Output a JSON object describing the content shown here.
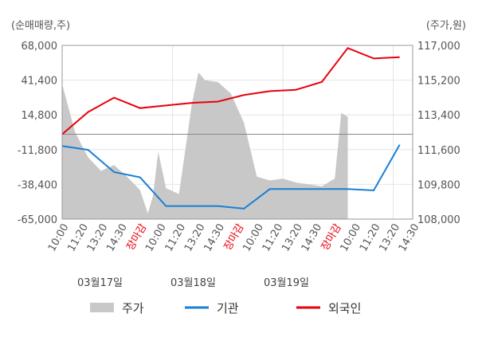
{
  "chart_data": {
    "type": "line",
    "left_unit": "(순매매량,주)",
    "right_unit": "(주가,원)",
    "left_ticks": [
      "68,000",
      "41,400",
      "14,800",
      "-11,800",
      "-38,400",
      "-65,000"
    ],
    "left_range": [
      -65000,
      68000
    ],
    "right_ticks": [
      "117,000",
      "115,200",
      "113,400",
      "111,600",
      "109,800",
      "108,000"
    ],
    "right_range": [
      108000,
      117000
    ],
    "x_labels": [
      "10:00",
      "11:20",
      "13:20",
      "14:30",
      "장마감",
      "10:00",
      "11:20",
      "13:20",
      "14:30",
      "장마감",
      "10:00",
      "11:20",
      "13:20",
      "14:30",
      "장마감",
      "10:00",
      "11:20",
      "13:20",
      "14:30"
    ],
    "close_label": "장마감",
    "dates": [
      "03월17일",
      "03월18일",
      "03월19일"
    ],
    "legend": [
      "주가",
      "기관",
      "외국인"
    ],
    "colors": {
      "price": "#c8c8c8",
      "institution": "#1a7fd4",
      "foreign": "#e8000b"
    },
    "series": [
      {
        "name": "기관",
        "x": [
          0,
          2,
          4,
          6,
          8,
          10,
          12,
          14,
          16,
          18,
          20,
          22,
          24,
          26
        ],
        "values": [
          -9000,
          -12000,
          -29000,
          -33000,
          -55000,
          -55000,
          -55000,
          -57000,
          -42000,
          -42000,
          -42000,
          -42000,
          -43000,
          -8000
        ]
      },
      {
        "name": "외국인",
        "x": [
          0,
          2,
          4,
          6,
          8,
          10,
          12,
          14,
          16,
          18,
          20,
          22,
          24,
          26
        ],
        "values": [
          0,
          17000,
          28000,
          20000,
          22000,
          24000,
          25000,
          30000,
          33000,
          34000,
          40000,
          66000,
          58000,
          59000
        ]
      },
      {
        "name": "주가",
        "x": [
          0,
          1,
          2,
          3,
          4,
          5,
          6,
          6.6,
          7,
          7.4,
          8,
          9,
          10,
          10.5,
          11,
          12,
          13,
          14,
          15,
          16,
          17,
          18,
          19,
          20,
          21,
          21.5,
          22
        ],
        "values": [
          115000,
          112500,
          111200,
          110500,
          110800,
          110200,
          109500,
          108300,
          109200,
          111500,
          109600,
          109300,
          114000,
          115600,
          115200,
          115100,
          114500,
          113000,
          110200,
          110000,
          110100,
          109900,
          109800,
          109700,
          110100,
          113500,
          113300
        ]
      }
    ]
  }
}
